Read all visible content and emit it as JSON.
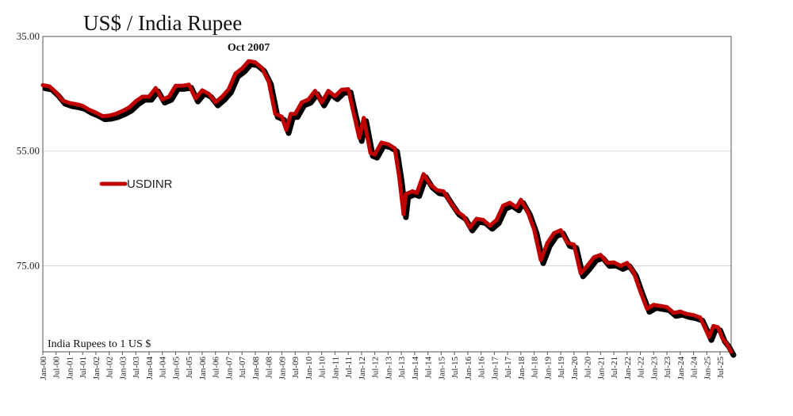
{
  "chart_data": {
    "type": "line",
    "title": "US$ / India Rupee",
    "unit_label": "India Rupees to 1 US $",
    "annotation": {
      "text": "Oct 2007",
      "x": "2007-10"
    },
    "y_axis": {
      "inverted": true,
      "ylim": [
        35,
        90
      ],
      "ticks": [
        "35.00",
        "55.00",
        "75.00"
      ],
      "tick_values": [
        35,
        55,
        75
      ]
    },
    "x_axis": {
      "ticks": [
        "Jan-00",
        "Jul-00",
        "Jan-01",
        "Jul-01",
        "Jan-02",
        "Jul-02",
        "Jan-03",
        "Jul-03",
        "Jan-04",
        "Jul-04",
        "Jan-05",
        "Jul-05",
        "Jan-06",
        "Jul-06",
        "Jan-07",
        "Jul-07",
        "Jan-08",
        "Jul-08",
        "Jan-09",
        "Jul-09",
        "Jan-10",
        "Jul-10",
        "Jan-11",
        "Jul-11",
        "Jan-12",
        "Jul-12",
        "Jan-13",
        "Jul-13",
        "Jan-14",
        "Jul-14",
        "Jan-15",
        "Jul-15",
        "Jan-16",
        "Jul-16",
        "Jan-17",
        "Jul-17",
        "Jan-18",
        "Jul-18",
        "Jan-19",
        "Jul-19",
        "Jan-20",
        "Jul-20",
        "Jan-21",
        "Jul-21",
        "Jan-22",
        "Jul-22",
        "Jan-23",
        "Jul-23",
        "Jan-24",
        "Jul-24",
        "Jan-25",
        "Jul-25"
      ],
      "range": [
        "2000-01",
        "2025-12"
      ]
    },
    "grid": {
      "horizontal": true,
      "vertical": false
    },
    "legend": {
      "position": "left-middle",
      "entries": [
        "USDINR"
      ]
    },
    "series": [
      {
        "name": "USDINR",
        "color": "#c00000",
        "shadow_color": "#000000",
        "points": [
          [
            "2000-01",
            43.5
          ],
          [
            "2000-04",
            43.7
          ],
          [
            "2000-07",
            44.8
          ],
          [
            "2000-10",
            46.2
          ],
          [
            "2001-01",
            46.6
          ],
          [
            "2001-04",
            46.8
          ],
          [
            "2001-07",
            47.1
          ],
          [
            "2001-10",
            47.8
          ],
          [
            "2002-01",
            48.3
          ],
          [
            "2002-04",
            48.9
          ],
          [
            "2002-07",
            48.8
          ],
          [
            "2002-10",
            48.5
          ],
          [
            "2003-01",
            48.0
          ],
          [
            "2003-04",
            47.4
          ],
          [
            "2003-07",
            46.3
          ],
          [
            "2003-10",
            45.5
          ],
          [
            "2004-01",
            45.5
          ],
          [
            "2004-04",
            44.0
          ],
          [
            "2004-07",
            46.0
          ],
          [
            "2004-10",
            45.5
          ],
          [
            "2005-01",
            43.6
          ],
          [
            "2005-04",
            43.6
          ],
          [
            "2005-07",
            43.4
          ],
          [
            "2005-10",
            45.8
          ],
          [
            "2006-01",
            44.4
          ],
          [
            "2006-04",
            45.0
          ],
          [
            "2006-07",
            46.5
          ],
          [
            "2006-10",
            45.5
          ],
          [
            "2007-01",
            44.2
          ],
          [
            "2007-04",
            41.5
          ],
          [
            "2007-07",
            40.6
          ],
          [
            "2007-10",
            39.3
          ],
          [
            "2008-01",
            39.5
          ],
          [
            "2008-04",
            40.5
          ],
          [
            "2008-07",
            42.8
          ],
          [
            "2008-10",
            48.5
          ],
          [
            "2009-01",
            49.0
          ],
          [
            "2009-03",
            51.3
          ],
          [
            "2009-05",
            48.5
          ],
          [
            "2009-07",
            48.5
          ],
          [
            "2009-10",
            46.5
          ],
          [
            "2010-01",
            46.0
          ],
          [
            "2010-04",
            44.5
          ],
          [
            "2010-07",
            46.5
          ],
          [
            "2010-10",
            44.5
          ],
          [
            "2011-01",
            45.4
          ],
          [
            "2011-04",
            44.3
          ],
          [
            "2011-07",
            44.2
          ],
          [
            "2011-09",
            47.6
          ],
          [
            "2011-12",
            52.7
          ],
          [
            "2012-02",
            49.2
          ],
          [
            "2012-05",
            55.3
          ],
          [
            "2012-07",
            55.6
          ],
          [
            "2012-10",
            53.5
          ],
          [
            "2013-01",
            53.8
          ],
          [
            "2013-04",
            54.5
          ],
          [
            "2013-06",
            59.5
          ],
          [
            "2013-08",
            66.0
          ],
          [
            "2013-09",
            62.5
          ],
          [
            "2013-12",
            62.0
          ],
          [
            "2014-02",
            62.3
          ],
          [
            "2014-05",
            59.0
          ],
          [
            "2014-08",
            60.8
          ],
          [
            "2014-11",
            61.8
          ],
          [
            "2015-02",
            62.0
          ],
          [
            "2015-05",
            63.8
          ],
          [
            "2015-08",
            65.5
          ],
          [
            "2015-11",
            66.3
          ],
          [
            "2016-02",
            68.3
          ],
          [
            "2016-05",
            66.8
          ],
          [
            "2016-08",
            67.0
          ],
          [
            "2016-11",
            68.0
          ],
          [
            "2017-02",
            67.0
          ],
          [
            "2017-05",
            64.5
          ],
          [
            "2017-08",
            64.0
          ],
          [
            "2017-11",
            64.8
          ],
          [
            "2018-01",
            63.5
          ],
          [
            "2018-04",
            65.5
          ],
          [
            "2018-07",
            68.7
          ],
          [
            "2018-10",
            74.0
          ],
          [
            "2019-01",
            71.0
          ],
          [
            "2019-04",
            69.3
          ],
          [
            "2019-07",
            68.8
          ],
          [
            "2019-10",
            71.0
          ],
          [
            "2020-01",
            71.3
          ],
          [
            "2020-04",
            76.3
          ],
          [
            "2020-07",
            75.0
          ],
          [
            "2020-10",
            73.5
          ],
          [
            "2021-01",
            73.1
          ],
          [
            "2021-04",
            74.5
          ],
          [
            "2021-07",
            74.4
          ],
          [
            "2021-10",
            75.0
          ],
          [
            "2022-01",
            74.5
          ],
          [
            "2022-04",
            76.2
          ],
          [
            "2022-07",
            79.5
          ],
          [
            "2022-10",
            82.5
          ],
          [
            "2023-01",
            81.8
          ],
          [
            "2023-04",
            82.0
          ],
          [
            "2023-07",
            82.2
          ],
          [
            "2023-10",
            83.2
          ],
          [
            "2024-01",
            83.0
          ],
          [
            "2024-04",
            83.4
          ],
          [
            "2024-07",
            83.6
          ],
          [
            "2024-10",
            84.0
          ],
          [
            "2025-01",
            86.5
          ],
          [
            "2025-02",
            87.4
          ],
          [
            "2025-04",
            85.5
          ],
          [
            "2025-06",
            85.7
          ],
          [
            "2025-08",
            87.6
          ],
          [
            "2025-10",
            88.6
          ],
          [
            "2025-12",
            90.0
          ]
        ]
      }
    ]
  }
}
